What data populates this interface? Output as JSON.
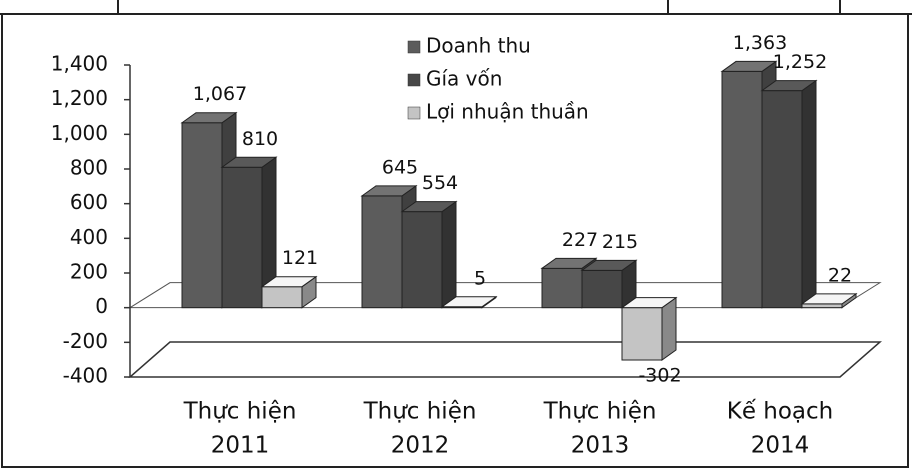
{
  "chart_data": {
    "type": "bar3d",
    "categories": [
      [
        "Thực hiện",
        "2011"
      ],
      [
        "Thực hiện",
        "2012"
      ],
      [
        "Thực hiện",
        "2013"
      ],
      [
        "Kế hoạch",
        "2014"
      ]
    ],
    "series": [
      {
        "name": "Doanh thu",
        "color": "#5c5c5c",
        "values": [
          1067,
          645,
          227,
          1363
        ],
        "value_labels": [
          "1,067",
          "645",
          "227",
          "1,363"
        ]
      },
      {
        "name": "Gía vốn",
        "color": "#474747",
        "values": [
          810,
          554,
          215,
          1252
        ],
        "value_labels": [
          "810",
          "554",
          "215",
          "1,252"
        ]
      },
      {
        "name": "Lợi nhuận thuần",
        "color": "#c4c4c4",
        "values": [
          121,
          5,
          -302,
          22
        ]
      }
    ],
    "ylim": [
      -400,
      1400
    ],
    "yticks": [
      -400,
      -200,
      0,
      200,
      400,
      600,
      800,
      {
        "value": 1000,
        "label": "1,000"
      },
      {
        "value": 1200,
        "label": "1,200"
      },
      {
        "value": 1400,
        "label": "1,400"
      }
    ]
  }
}
